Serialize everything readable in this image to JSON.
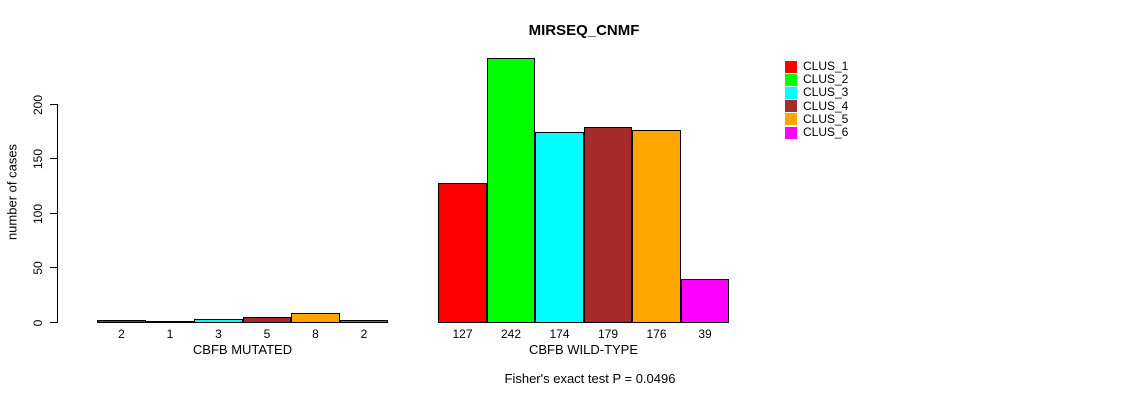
{
  "chart_data": {
    "type": "bar",
    "title": "MIRSEQ_CNMF",
    "ylabel": "number of cases",
    "xlabel": "",
    "yticks": [
      0,
      50,
      100,
      150,
      200
    ],
    "ylim": [
      0,
      242
    ],
    "grid": false,
    "legend_position": "right",
    "bar_value_labels": true,
    "categories": [
      "CBFB MUTATED",
      "CBFB WILD-TYPE"
    ],
    "series": [
      {
        "name": "CLUS_1",
        "color": "#ff0000",
        "values": [
          2,
          127
        ]
      },
      {
        "name": "CLUS_2",
        "color": "#00ff00",
        "values": [
          1,
          242
        ]
      },
      {
        "name": "CLUS_3",
        "color": "#00ffff",
        "values": [
          3,
          174
        ]
      },
      {
        "name": "CLUS_4",
        "color": "#a52a2a",
        "values": [
          5,
          179
        ]
      },
      {
        "name": "CLUS_5",
        "color": "#ffa500",
        "values": [
          8,
          176
        ]
      },
      {
        "name": "CLUS_6",
        "color": "#ff00ff",
        "values": [
          2,
          39
        ]
      }
    ],
    "annotation": "Fisher's exact test P = 0.0496"
  }
}
